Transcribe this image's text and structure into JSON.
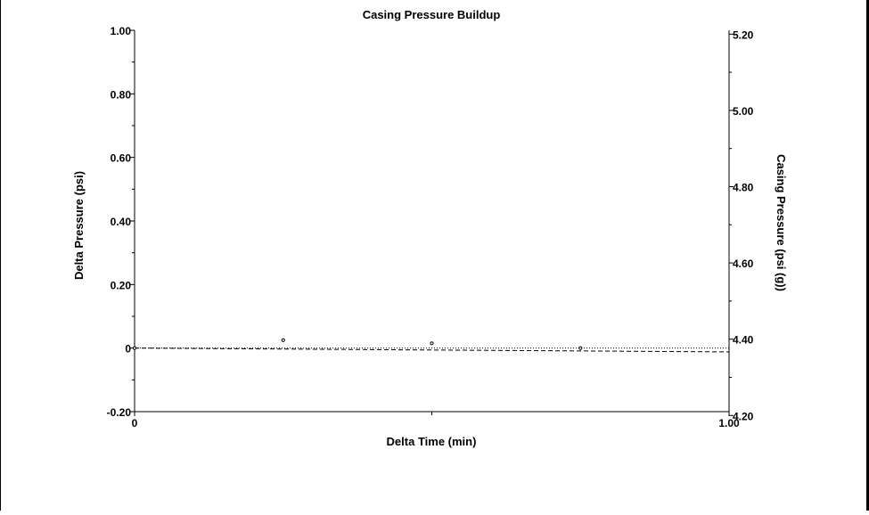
{
  "chart_data": {
    "type": "scatter",
    "title": "Casing Pressure Buildup",
    "xlabel": "Delta Time (min)",
    "ylabel": "Delta Pressure (psi)",
    "y2label": "Casing Pressure (psi (g))",
    "xlim": [
      0,
      1
    ],
    "ylim": [
      -0.2,
      1.0
    ],
    "y2lim": [
      4.21,
      5.21
    ],
    "x_ticks": [
      {
        "value": 0,
        "label": "0"
      },
      {
        "value": 1,
        "label": "1.00"
      }
    ],
    "y_ticks": [
      {
        "value": 1.0,
        "label": "1.00"
      },
      {
        "value": 0.8,
        "label": "0.80"
      },
      {
        "value": 0.6,
        "label": "0.60"
      },
      {
        "value": 0.4,
        "label": "0.40"
      },
      {
        "value": 0.2,
        "label": "0.20"
      },
      {
        "value": 0,
        "label": "0"
      },
      {
        "value": -0.2,
        "label": "-0.20"
      }
    ],
    "y2_ticks": [
      {
        "value": 5.2,
        "label": "5.20"
      },
      {
        "value": 5.0,
        "label": "5.00"
      },
      {
        "value": 4.8,
        "label": "4.80"
      },
      {
        "value": 4.6,
        "label": "4.60"
      },
      {
        "value": 4.4,
        "label": "4.40"
      },
      {
        "value": 4.2,
        "label": "4.20"
      }
    ],
    "points": [
      {
        "x": 0.0,
        "y": 0.0
      },
      {
        "x": 0.25,
        "y": 0.025
      },
      {
        "x": 0.5,
        "y": 0.015
      },
      {
        "x": 0.75,
        "y": 0.0
      }
    ],
    "lines": [
      {
        "style": "dotted",
        "x": [
          0,
          1
        ],
        "y": [
          0.0,
          0.0
        ]
      },
      {
        "style": "dashed",
        "x": [
          0,
          1
        ],
        "y": [
          0.0,
          -0.012
        ]
      }
    ],
    "grid": false,
    "legend": "none"
  }
}
